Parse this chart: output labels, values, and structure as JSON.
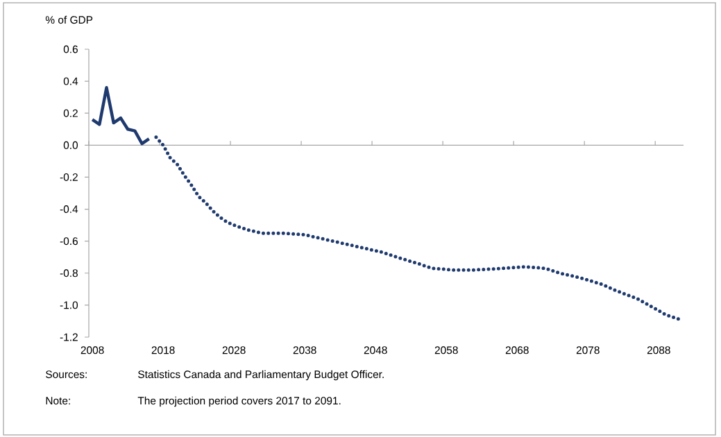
{
  "chart_data": {
    "type": "line",
    "ylabel": "% of GDP",
    "xlim": [
      2007.5,
      2091.5
    ],
    "xticks": [
      2008,
      2018,
      2028,
      2038,
      2048,
      2058,
      2068,
      2078,
      2088
    ],
    "ylim": [
      -1.2,
      0.6
    ],
    "yticks": [
      {
        "value": 0.6,
        "label": "0.6"
      },
      {
        "value": 0.4,
        "label": "0.4"
      },
      {
        "value": 0.2,
        "label": "0.2"
      },
      {
        "value": 0.0,
        "label": "0.0"
      },
      {
        "value": -0.2,
        "label": "-0.2"
      },
      {
        "value": -0.4,
        "label": "-0.4"
      },
      {
        "value": -0.6,
        "label": "-0.6"
      },
      {
        "value": -0.8,
        "label": "-0.8"
      },
      {
        "value": -1.0,
        "label": "-1.0"
      },
      {
        "value": -1.2,
        "label": "-1.2"
      }
    ],
    "series": [
      {
        "color": "#1f3a6e",
        "line_style": "solid",
        "x": [
          2008,
          2009,
          2010,
          2011,
          2012,
          2013,
          2014,
          2015,
          2016
        ],
        "values": [
          0.16,
          0.13,
          0.36,
          0.14,
          0.17,
          0.1,
          0.09,
          0.01,
          0.04
        ]
      },
      {
        "color": "#1f3a6e",
        "line_style": "dotted",
        "x": [
          2017,
          2018,
          2019,
          2020,
          2021,
          2022,
          2023,
          2024,
          2025,
          2026,
          2027,
          2028,
          2030,
          2032,
          2035,
          2038,
          2040,
          2043,
          2046,
          2049,
          2051,
          2054,
          2056,
          2059,
          2062,
          2066,
          2069,
          2072,
          2074,
          2077,
          2080,
          2082,
          2085,
          2087,
          2089,
          2091
        ],
        "values": [
          0.05,
          0.0,
          -0.08,
          -0.12,
          -0.19,
          -0.25,
          -0.32,
          -0.36,
          -0.41,
          -0.45,
          -0.48,
          -0.5,
          -0.53,
          -0.55,
          -0.55,
          -0.56,
          -0.58,
          -0.61,
          -0.64,
          -0.67,
          -0.7,
          -0.74,
          -0.77,
          -0.78,
          -0.78,
          -0.77,
          -0.76,
          -0.77,
          -0.8,
          -0.83,
          -0.87,
          -0.91,
          -0.96,
          -1.01,
          -1.06,
          -1.09
        ]
      }
    ],
    "marker": "none",
    "annotations": [
      "Sources:",
      "Statistics Canada and Parliamentary Budget Officer.",
      "Note:",
      "The projection period covers 2017 to 2091."
    ]
  }
}
